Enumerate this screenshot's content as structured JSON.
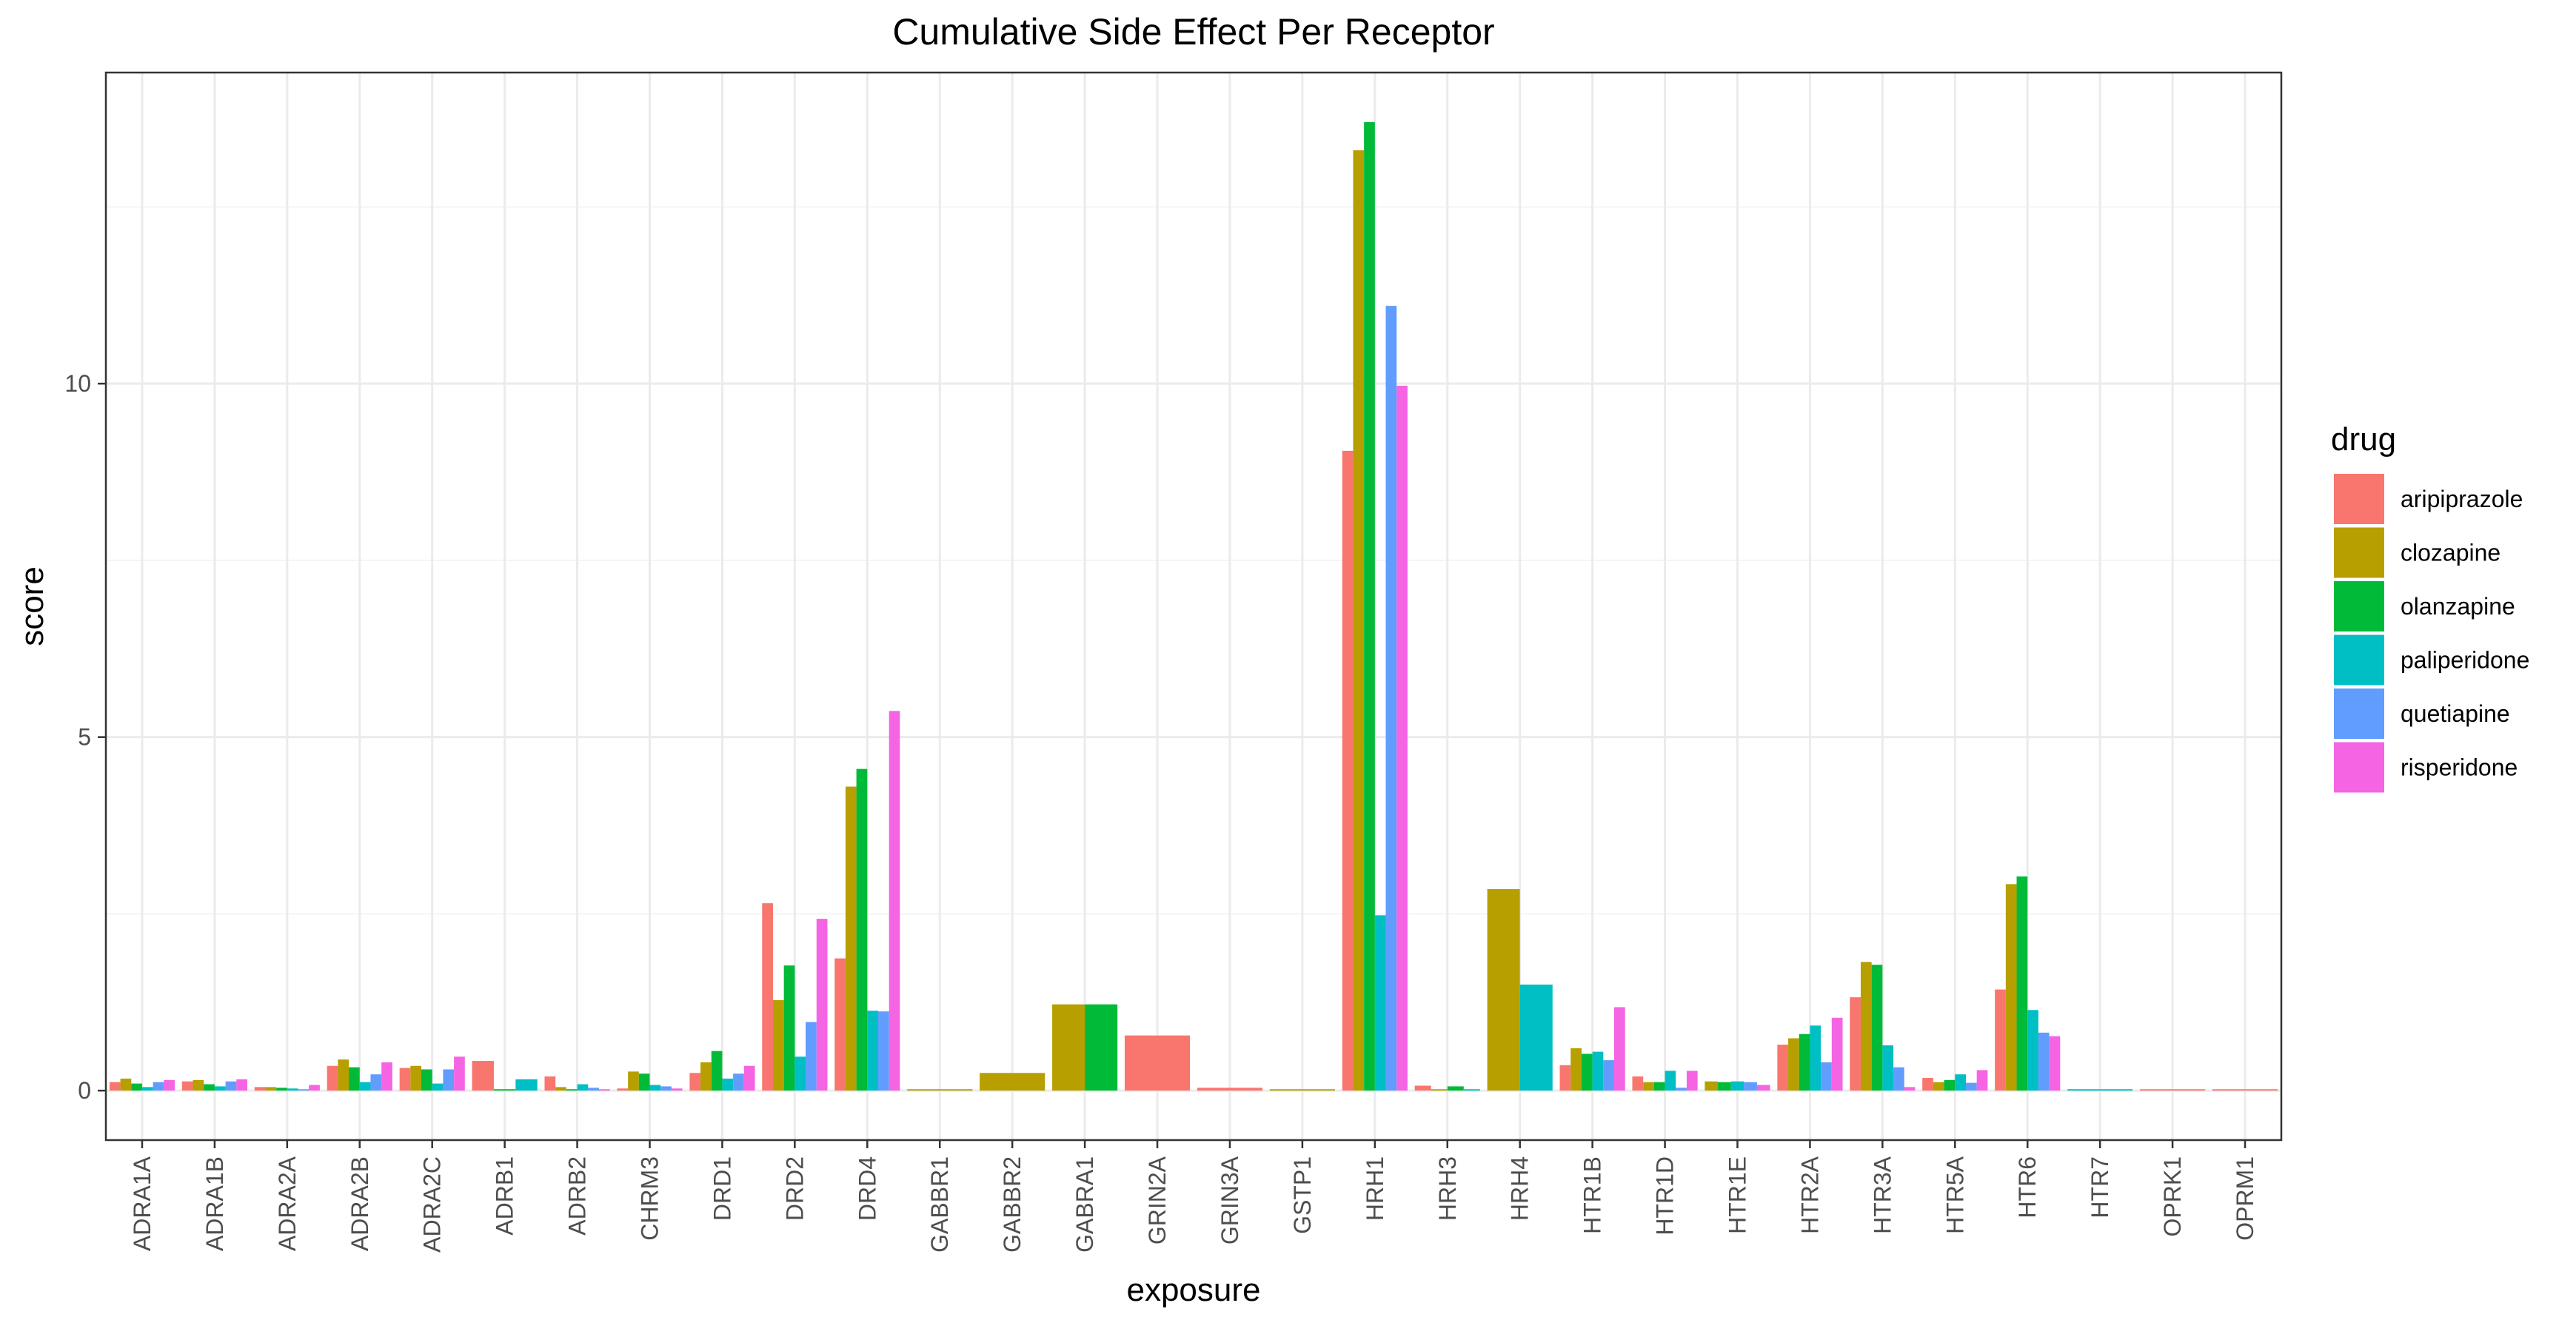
{
  "chart_data": {
    "type": "bar",
    "title": "Cumulative Side Effect Per Receptor",
    "xlabel": "exposure",
    "ylabel": "score",
    "ylim": [
      -0.7,
      14.4
    ],
    "yticks": [
      0,
      5,
      10
    ],
    "grid": true,
    "legend": {
      "title": "drug",
      "position": "right"
    },
    "categories": [
      "ADRA1A",
      "ADRA1B",
      "ADRA2A",
      "ADRA2B",
      "ADRA2C",
      "ADRB1",
      "ADRB2",
      "CHRM3",
      "DRD1",
      "DRD2",
      "DRD4",
      "GABBR1",
      "GABBR2",
      "GABRA1",
      "GRIN2A",
      "GRIN3A",
      "GSTP1",
      "HRH1",
      "HRH3",
      "HRH4",
      "HTR1B",
      "HTR1D",
      "HTR1E",
      "HTR2A",
      "HTR3A",
      "HTR5A",
      "HTR6",
      "HTR7",
      "OPRK1",
      "OPRM1"
    ],
    "series": [
      {
        "name": "aripiprazole",
        "color": "#F8766D",
        "values": [
          0.12,
          0.13,
          0.05,
          0.35,
          0.32,
          0.42,
          0.2,
          0.03,
          0.25,
          2.65,
          1.87,
          null,
          null,
          null,
          0.78,
          0.04,
          null,
          9.05,
          0.07,
          null,
          0.36,
          0.2,
          null,
          0.65,
          1.32,
          0.18,
          1.43,
          null,
          0.02,
          0.02
        ]
      },
      {
        "name": "clozapine",
        "color": "#B79F00",
        "values": [
          0.17,
          0.15,
          0.05,
          0.44,
          0.35,
          null,
          0.05,
          0.27,
          0.4,
          1.28,
          4.3,
          0.02,
          0.25,
          1.22,
          null,
          null,
          0.02,
          13.3,
          0.02,
          2.85,
          0.6,
          0.12,
          0.13,
          0.74,
          1.82,
          0.12,
          2.92,
          null,
          null,
          null
        ]
      },
      {
        "name": "olanzapine",
        "color": "#00BA38",
        "values": [
          0.1,
          0.09,
          0.04,
          0.33,
          0.3,
          0.02,
          0.02,
          0.24,
          0.56,
          1.77,
          4.55,
          null,
          null,
          1.22,
          null,
          null,
          null,
          13.7,
          0.06,
          null,
          0.52,
          0.12,
          0.12,
          0.8,
          1.78,
          0.15,
          3.03,
          null,
          null,
          null
        ]
      },
      {
        "name": "paliperidone",
        "color": "#00BFC4",
        "values": [
          0.05,
          0.06,
          0.03,
          0.12,
          0.1,
          0.16,
          0.09,
          0.08,
          0.17,
          0.48,
          1.13,
          null,
          null,
          null,
          null,
          null,
          null,
          2.48,
          0.02,
          1.5,
          0.55,
          0.28,
          0.13,
          0.92,
          0.64,
          0.23,
          1.14,
          0.02,
          null,
          null
        ]
      },
      {
        "name": "quetiapine",
        "color": "#619CFF",
        "values": [
          0.12,
          0.13,
          0.02,
          0.23,
          0.3,
          null,
          0.04,
          0.06,
          0.24,
          0.97,
          1.12,
          null,
          null,
          null,
          null,
          null,
          null,
          11.1,
          null,
          null,
          0.43,
          0.04,
          0.12,
          0.4,
          0.33,
          0.11,
          0.82,
          null,
          null,
          null
        ]
      },
      {
        "name": "risperidone",
        "color": "#F564E3",
        "values": [
          0.15,
          0.16,
          0.08,
          0.4,
          0.48,
          null,
          0.02,
          0.03,
          0.35,
          2.43,
          5.37,
          null,
          null,
          null,
          null,
          null,
          null,
          9.97,
          null,
          null,
          1.18,
          0.28,
          0.08,
          1.03,
          0.05,
          0.29,
          0.77,
          null,
          null,
          null
        ]
      }
    ]
  }
}
